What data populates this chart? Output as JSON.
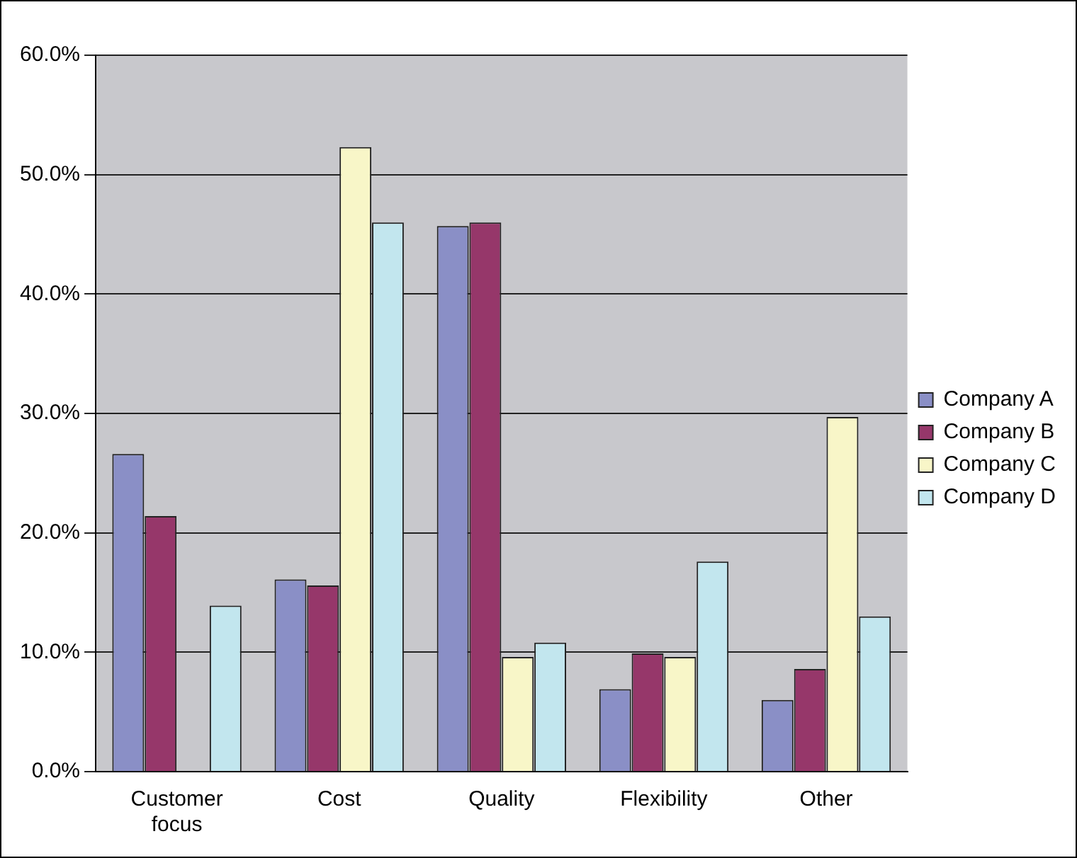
{
  "chart_data": {
    "type": "bar",
    "categories": [
      "Customer focus",
      "Cost",
      "Quality",
      "Flexibility",
      "Other"
    ],
    "series": [
      {
        "name": "Company A",
        "color": "#8a8fc6",
        "values": [
          26.6,
          16.1,
          45.7,
          6.9,
          6.0
        ]
      },
      {
        "name": "Company B",
        "color": "#96376a",
        "values": [
          21.4,
          15.6,
          46.0,
          9.9,
          8.6
        ]
      },
      {
        "name": "Company C",
        "color": "#f8f6c8",
        "values": [
          0,
          52.3,
          9.6,
          9.6,
          29.7
        ]
      },
      {
        "name": "Company D",
        "color": "#c2e6ee",
        "values": [
          13.9,
          46.0,
          10.8,
          17.6,
          13.0
        ]
      }
    ],
    "ylim": [
      0,
      60
    ],
    "yticks": [
      {
        "value": 0,
        "label": "0.0%"
      },
      {
        "value": 10,
        "label": "10.0%"
      },
      {
        "value": 20,
        "label": "20.0%"
      },
      {
        "value": 30,
        "label": "30.0%"
      },
      {
        "value": 40,
        "label": "40.0%"
      },
      {
        "value": 50,
        "label": "50.0%"
      },
      {
        "value": 60,
        "label": "60.0%"
      }
    ],
    "grid": "y",
    "legend": "right"
  }
}
